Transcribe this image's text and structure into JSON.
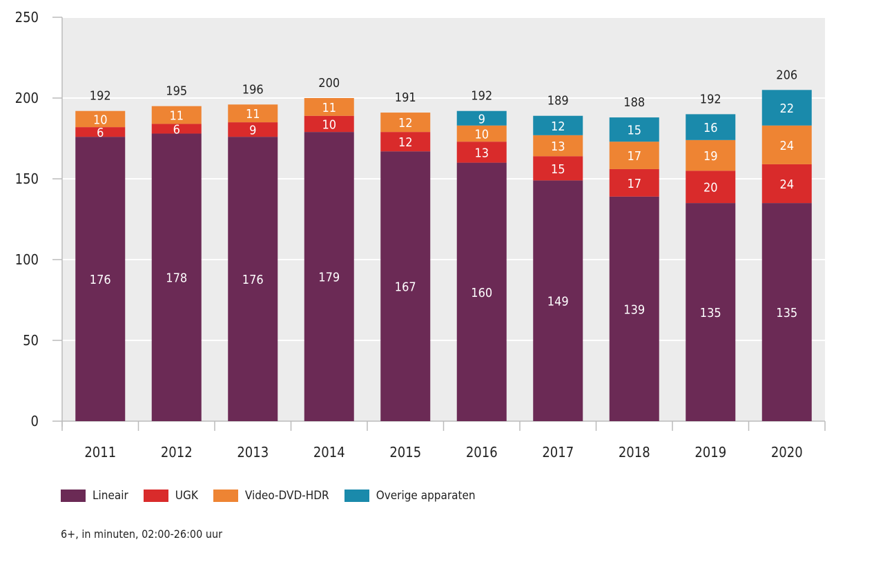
{
  "chart_data": {
    "type": "bar",
    "stacked": true,
    "categories": [
      "2011",
      "2012",
      "2013",
      "2014",
      "2015",
      "2016",
      "2017",
      "2018",
      "2019",
      "2020"
    ],
    "series": [
      {
        "name": "Lineair",
        "color": "#6b2a55",
        "values": [
          176,
          178,
          176,
          179,
          167,
          160,
          149,
          139,
          135,
          135
        ]
      },
      {
        "name": "UGK",
        "color": "#d92b2b",
        "values": [
          6,
          6,
          9,
          10,
          12,
          13,
          15,
          17,
          20,
          24
        ]
      },
      {
        "name": "Video-DVD-HDR",
        "color": "#ee8433",
        "values": [
          10,
          11,
          11,
          11,
          12,
          10,
          13,
          17,
          19,
          24
        ]
      },
      {
        "name": "Overige apparaten",
        "color": "#1a8aab",
        "values": [
          null,
          null,
          null,
          null,
          null,
          9,
          12,
          15,
          16,
          22
        ]
      }
    ],
    "totals": [
      192,
      195,
      196,
      200,
      191,
      192,
      189,
      188,
      192,
      206
    ],
    "ylim": [
      0,
      250
    ],
    "yticks": [
      "0",
      "50",
      "100",
      "150",
      "200",
      "250"
    ],
    "grid": true,
    "legend": "bottom-left",
    "note": "6+, in minuten, 02:00-26:00 uur"
  }
}
